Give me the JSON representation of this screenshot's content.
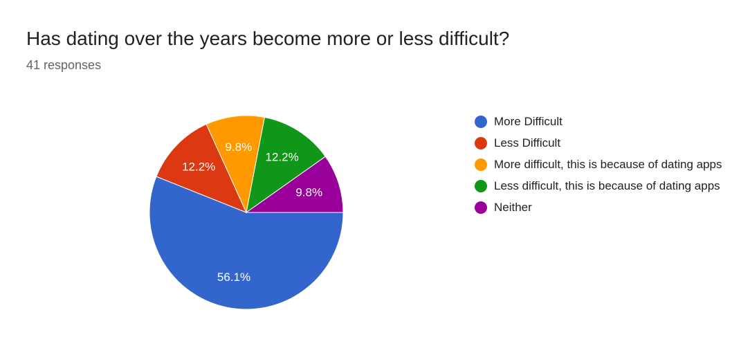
{
  "header": {
    "title": "Has dating over the years become more or less difficult?",
    "responses": "41 responses"
  },
  "chart_data": {
    "type": "pie",
    "title": "Has dating over the years become more or less difficult?",
    "slices": [
      {
        "label": "More Difficult",
        "value": 56.1,
        "value_label": "56.1%",
        "color": "#3366cc"
      },
      {
        "label": "Less Difficult",
        "value": 12.2,
        "value_label": "12.2%",
        "color": "#dc3912"
      },
      {
        "label": "More difficult, this is because of dating apps",
        "value": 9.8,
        "value_label": "9.8%",
        "color": "#ff9900"
      },
      {
        "label": "Less difficult, this is because of dating apps",
        "value": 12.2,
        "value_label": "12.2%",
        "color": "#109618"
      },
      {
        "label": "Neither",
        "value": 9.8,
        "value_label": "9.8%",
        "color": "#990099"
      }
    ],
    "legend_position": "right"
  }
}
